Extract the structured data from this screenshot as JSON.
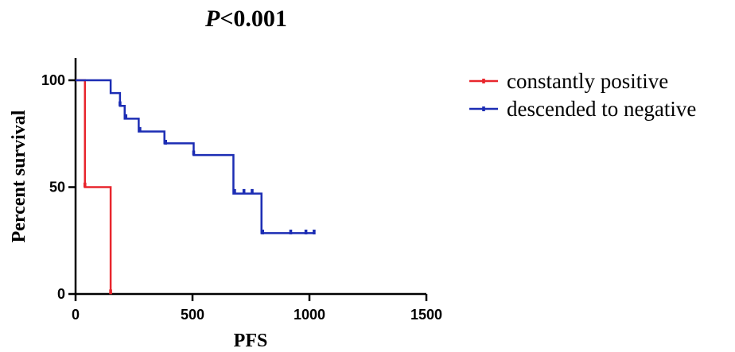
{
  "chart_data": {
    "type": "line",
    "title_prefix": "P",
    "title_suffix": "<0.001",
    "xlabel": "PFS",
    "ylabel": "Percent survival",
    "xlim": [
      0,
      1500
    ],
    "ylim": [
      0,
      100
    ],
    "x_ticks": [
      0,
      500,
      1000,
      1500
    ],
    "y_ticks": [
      0,
      50,
      100
    ],
    "legend_position": "right",
    "grid": false,
    "series": [
      {
        "name": "constantly positive",
        "color": "#e8262d",
        "step_points": [
          [
            0,
            100
          ],
          [
            40,
            100
          ],
          [
            40,
            50
          ],
          [
            150,
            50
          ],
          [
            150,
            0
          ]
        ],
        "censor_points": [
          [
            40,
            51
          ],
          [
            150,
            1
          ]
        ]
      },
      {
        "name": "descended to negative",
        "color": "#1c2db4",
        "step_points": [
          [
            0,
            100
          ],
          [
            150,
            100
          ],
          [
            150,
            94
          ],
          [
            190,
            94
          ],
          [
            190,
            88
          ],
          [
            210,
            88
          ],
          [
            210,
            82
          ],
          [
            270,
            82
          ],
          [
            270,
            76
          ],
          [
            380,
            76
          ],
          [
            380,
            70.5
          ],
          [
            505,
            70.5
          ],
          [
            505,
            65
          ],
          [
            675,
            65
          ],
          [
            675,
            47
          ],
          [
            795,
            47
          ],
          [
            795,
            28.5
          ],
          [
            1025,
            28.5
          ]
        ],
        "censor_points": [
          [
            190,
            89
          ],
          [
            215,
            83
          ],
          [
            275,
            77
          ],
          [
            385,
            71
          ],
          [
            505,
            66
          ],
          [
            680,
            48
          ],
          [
            720,
            48
          ],
          [
            755,
            48
          ],
          [
            800,
            29
          ],
          [
            920,
            29
          ],
          [
            985,
            29
          ],
          [
            1020,
            29
          ]
        ]
      }
    ]
  }
}
